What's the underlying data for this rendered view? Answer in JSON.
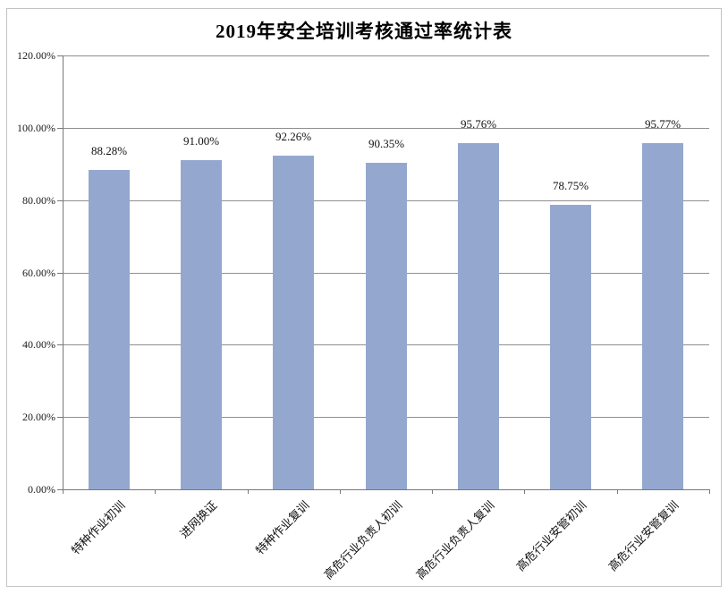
{
  "chart_data": {
    "type": "bar",
    "title": "2019年安全培训考核通过率统计表",
    "categories": [
      "特种作业初训",
      "进网换证",
      "特种作业复训",
      "高危行业负责人初训",
      "高危行业负责人复训",
      "高危行业安管初训",
      "高危行业安管复训"
    ],
    "values": [
      88.28,
      91.0,
      92.26,
      90.35,
      95.76,
      78.75,
      95.77
    ],
    "data_labels": [
      "88.28%",
      "91.00%",
      "92.26%",
      "90.35%",
      "95.76%",
      "78.75%",
      "95.77%"
    ],
    "y_tick_values": [
      0,
      20,
      40,
      60,
      80,
      100,
      120
    ],
    "y_tick_labels": [
      "0.00%",
      "20.00%",
      "40.00%",
      "60.00%",
      "80.00%",
      "100.00%",
      "120.00%"
    ],
    "ylim": [
      0,
      120
    ],
    "xlabel": "",
    "ylabel": "",
    "legend": "none",
    "grid": "horizontal",
    "colors": {
      "bar_fill": "#94A8CF",
      "axis": "#787878",
      "gridline": "#8f8f8f",
      "frame_border": "#c3c3c3",
      "background": "#ffffff",
      "text": "#000000"
    }
  }
}
